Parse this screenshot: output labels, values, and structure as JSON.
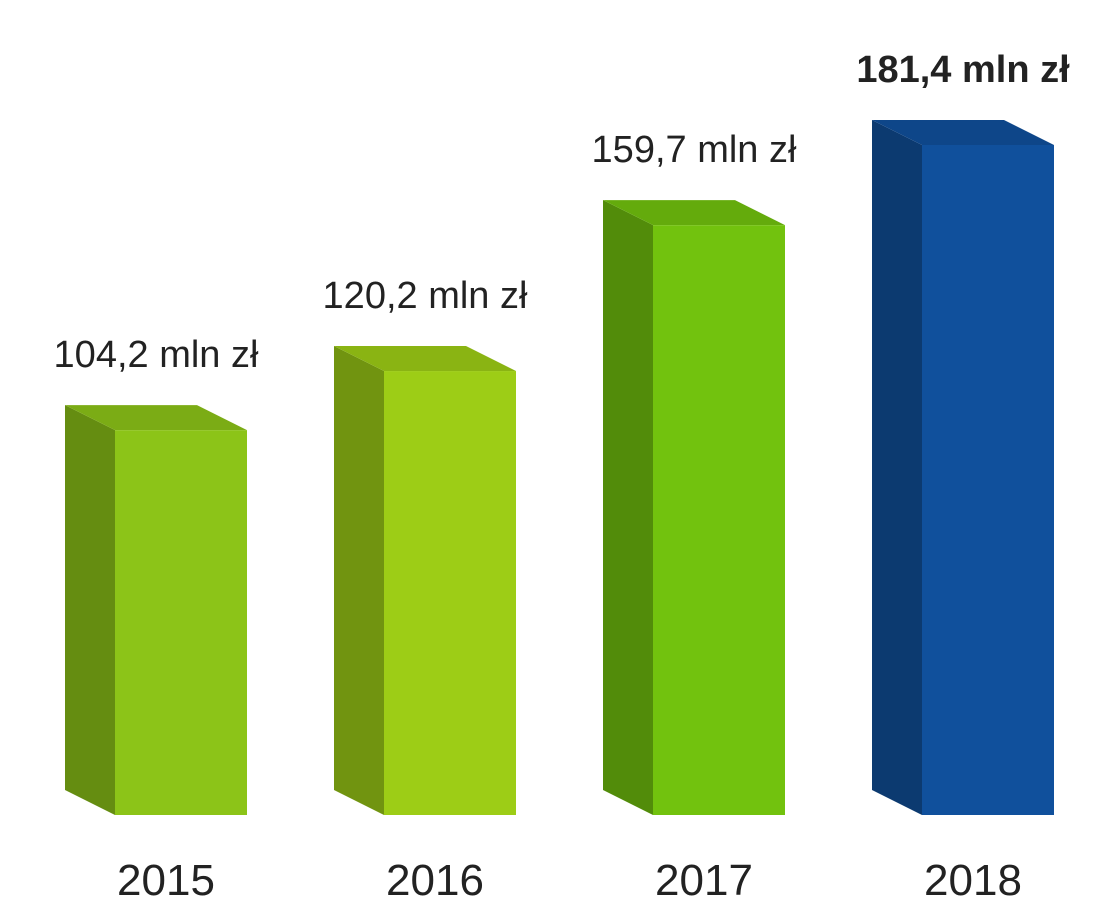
{
  "chart_data": {
    "type": "bar",
    "categories": [
      "2015",
      "2016",
      "2017",
      "2018"
    ],
    "values": [
      104.2,
      120.2,
      159.7,
      181.4
    ],
    "value_labels": [
      "104,2 mln zł",
      "120,2 mln zł",
      "159,7 mln zł",
      "181,4 mln zł"
    ],
    "colors": [
      "#8cc418",
      "#9dcd16",
      "#72c20e",
      "#10509c"
    ]
  }
}
